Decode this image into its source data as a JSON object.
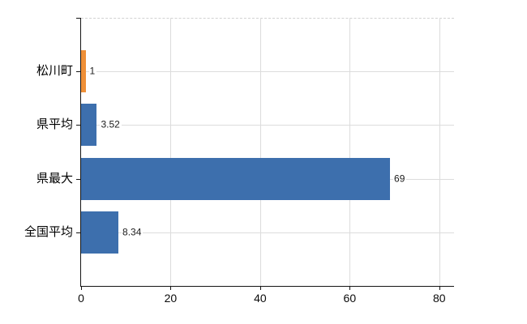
{
  "chart_data": {
    "type": "bar",
    "orientation": "horizontal",
    "title": "",
    "xlabel": "",
    "ylabel": "",
    "categories": [
      "松川町",
      "県平均",
      "県最大",
      "全国平均"
    ],
    "values": [
      1,
      3.52,
      69,
      8.34
    ],
    "value_labels": [
      "1",
      "3.52",
      "69",
      "8.34"
    ],
    "bar_colors": [
      "#EF9038",
      "#3D6FAD",
      "#3D6FAD",
      "#3D6FAD"
    ],
    "xticks": [
      0,
      20,
      40,
      60,
      80
    ],
    "xlim": [
      0,
      83.3
    ],
    "grid": true,
    "legend_position": "none",
    "gridline_color": "#dcdcdc",
    "axis_color": "#151515",
    "top_border_style": "dashed"
  }
}
